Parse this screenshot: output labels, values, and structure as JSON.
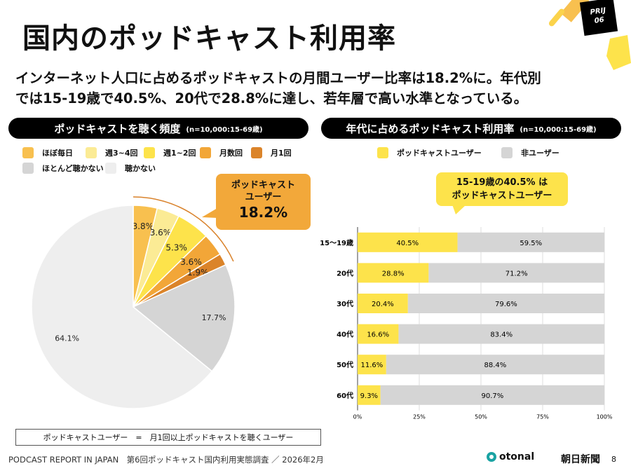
{
  "header": {
    "title": "国内のポッドキャスト利用率",
    "badge_line1": "PRIJ",
    "badge_line2": "06"
  },
  "lead": {
    "line1": "インターネット人口に占めるポッドキャストの月間ユーザー比率は18.2%に。年代別",
    "line2": "では15-19歳で40.5%、20代で28.8%に達し、若年層で高い水準となっている。"
  },
  "left_panel": {
    "title": "ポッドキャストを聴く頻度",
    "sample": "(n=10,000:15-69歳)",
    "callout": {
      "line1": "ポッドキャスト",
      "line2": "ユーザー",
      "value": "18.2%"
    }
  },
  "right_panel": {
    "title": "年代に占めるポッドキャスト利用率",
    "sample": "(n=10,000:15-69歳)",
    "callout": {
      "line1": "15-19歳の40.5% は",
      "line2": "ポッドキャストユーザー"
    }
  },
  "chart_data": [
    {
      "type": "pie",
      "slices": [
        {
          "label": "ほぼ毎日",
          "value": 3.8,
          "color": "#f8c04f"
        },
        {
          "label": "週3~4回",
          "value": 3.6,
          "color": "#fbeb95"
        },
        {
          "label": "週1~2回",
          "value": 5.3,
          "color": "#fde34b"
        },
        {
          "label": "月数回",
          "value": 3.6,
          "color": "#f2a638"
        },
        {
          "label": "月1回",
          "value": 1.9,
          "color": "#db842a"
        },
        {
          "label": "ほとんど聴かない",
          "value": 17.7,
          "color": "#d5d5d5"
        },
        {
          "label": "聴かない",
          "value": 64.1,
          "color": "#eeeeee"
        }
      ],
      "data_labels": [
        "3.8%",
        "3.6%",
        "5.3%",
        "3.6%",
        "1.9%",
        "17.7%",
        "64.1%"
      ]
    },
    {
      "type": "bar",
      "orientation": "horizontal",
      "stacked": true,
      "categories": [
        "15〜19歳",
        "20代",
        "30代",
        "40代",
        "50代",
        "60代"
      ],
      "series": [
        {
          "name": "ポッドキャストユーザー",
          "color": "#fde34b",
          "values": [
            40.5,
            28.8,
            20.4,
            16.6,
            11.6,
            9.3
          ],
          "labels": [
            "40.5%",
            "28.8%",
            "20.4%",
            "16.6%",
            "11.6%",
            "9.3%"
          ]
        },
        {
          "name": "非ユーザー",
          "color": "#d5d5d5",
          "values": [
            59.5,
            71.2,
            79.6,
            83.4,
            88.4,
            90.7
          ],
          "labels": [
            "59.5%",
            "71.2%",
            "79.6%",
            "83.4%",
            "88.4%",
            "90.7%"
          ]
        }
      ],
      "xlim": [
        0,
        100
      ],
      "xticks": [
        "0%",
        "25%",
        "50%",
        "75%",
        "100%"
      ],
      "grid": true,
      "legend": "top"
    }
  ],
  "note": "ポッドキャストユーザー　=　月1回以上ポッドキャストを聴くユーザー",
  "footer": {
    "text": "PODCAST REPORT IN JAPAN　第6回ポッドキャスト国内利用実態調査 ／ 2026年2月",
    "logo1": "otonal",
    "logo2": "朝日新聞",
    "page": "8"
  }
}
